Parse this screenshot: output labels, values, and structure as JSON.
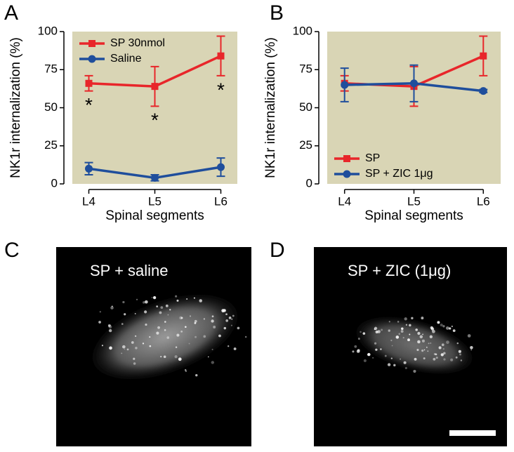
{
  "panel_labels": [
    "A",
    "B",
    "C",
    "D"
  ],
  "chart_data": [
    {
      "type": "line",
      "y_label": "NK1r internalization (%)",
      "x_label": "Spinal segments",
      "categories": [
        "L4",
        "L5",
        "L6"
      ],
      "ylim": [
        0,
        100
      ],
      "yticks": [
        0,
        25,
        50,
        75,
        100
      ],
      "background": "#d9d5b5",
      "legend": "upper left",
      "series": [
        {
          "name": "SP 30nmol",
          "color": "#e8262a",
          "marker": "square",
          "values": [
            66,
            64,
            84
          ],
          "errors": [
            5,
            13,
            13
          ]
        },
        {
          "name": "Saline",
          "color": "#1f4e9c",
          "marker": "circle",
          "values": [
            10,
            4,
            11
          ],
          "errors": [
            4,
            2,
            6
          ]
        }
      ],
      "annotations": [
        {
          "text": "*",
          "x": "L4"
        },
        {
          "text": "*",
          "x": "L5"
        },
        {
          "text": "*",
          "x": "L6"
        }
      ]
    },
    {
      "type": "line",
      "y_label": "NK1r internalization (%)",
      "x_label": "Spinal segments",
      "categories": [
        "L4",
        "L5",
        "L6"
      ],
      "ylim": [
        0,
        100
      ],
      "yticks": [
        0,
        25,
        50,
        75,
        100
      ],
      "background": "#d9d5b5",
      "legend": "lower left",
      "series": [
        {
          "name": "SP",
          "color": "#e8262a",
          "marker": "square",
          "values": [
            66,
            64,
            84
          ],
          "errors": [
            5,
            13,
            13
          ]
        },
        {
          "name": "SP + ZIC 1μg",
          "color": "#1f4e9c",
          "marker": "circle",
          "values": [
            65,
            66,
            61
          ],
          "errors": [
            11,
            12,
            1
          ]
        }
      ]
    }
  ],
  "images": [
    {
      "caption": "SP + saline"
    },
    {
      "caption": "SP + ZIC (1μg)"
    }
  ]
}
